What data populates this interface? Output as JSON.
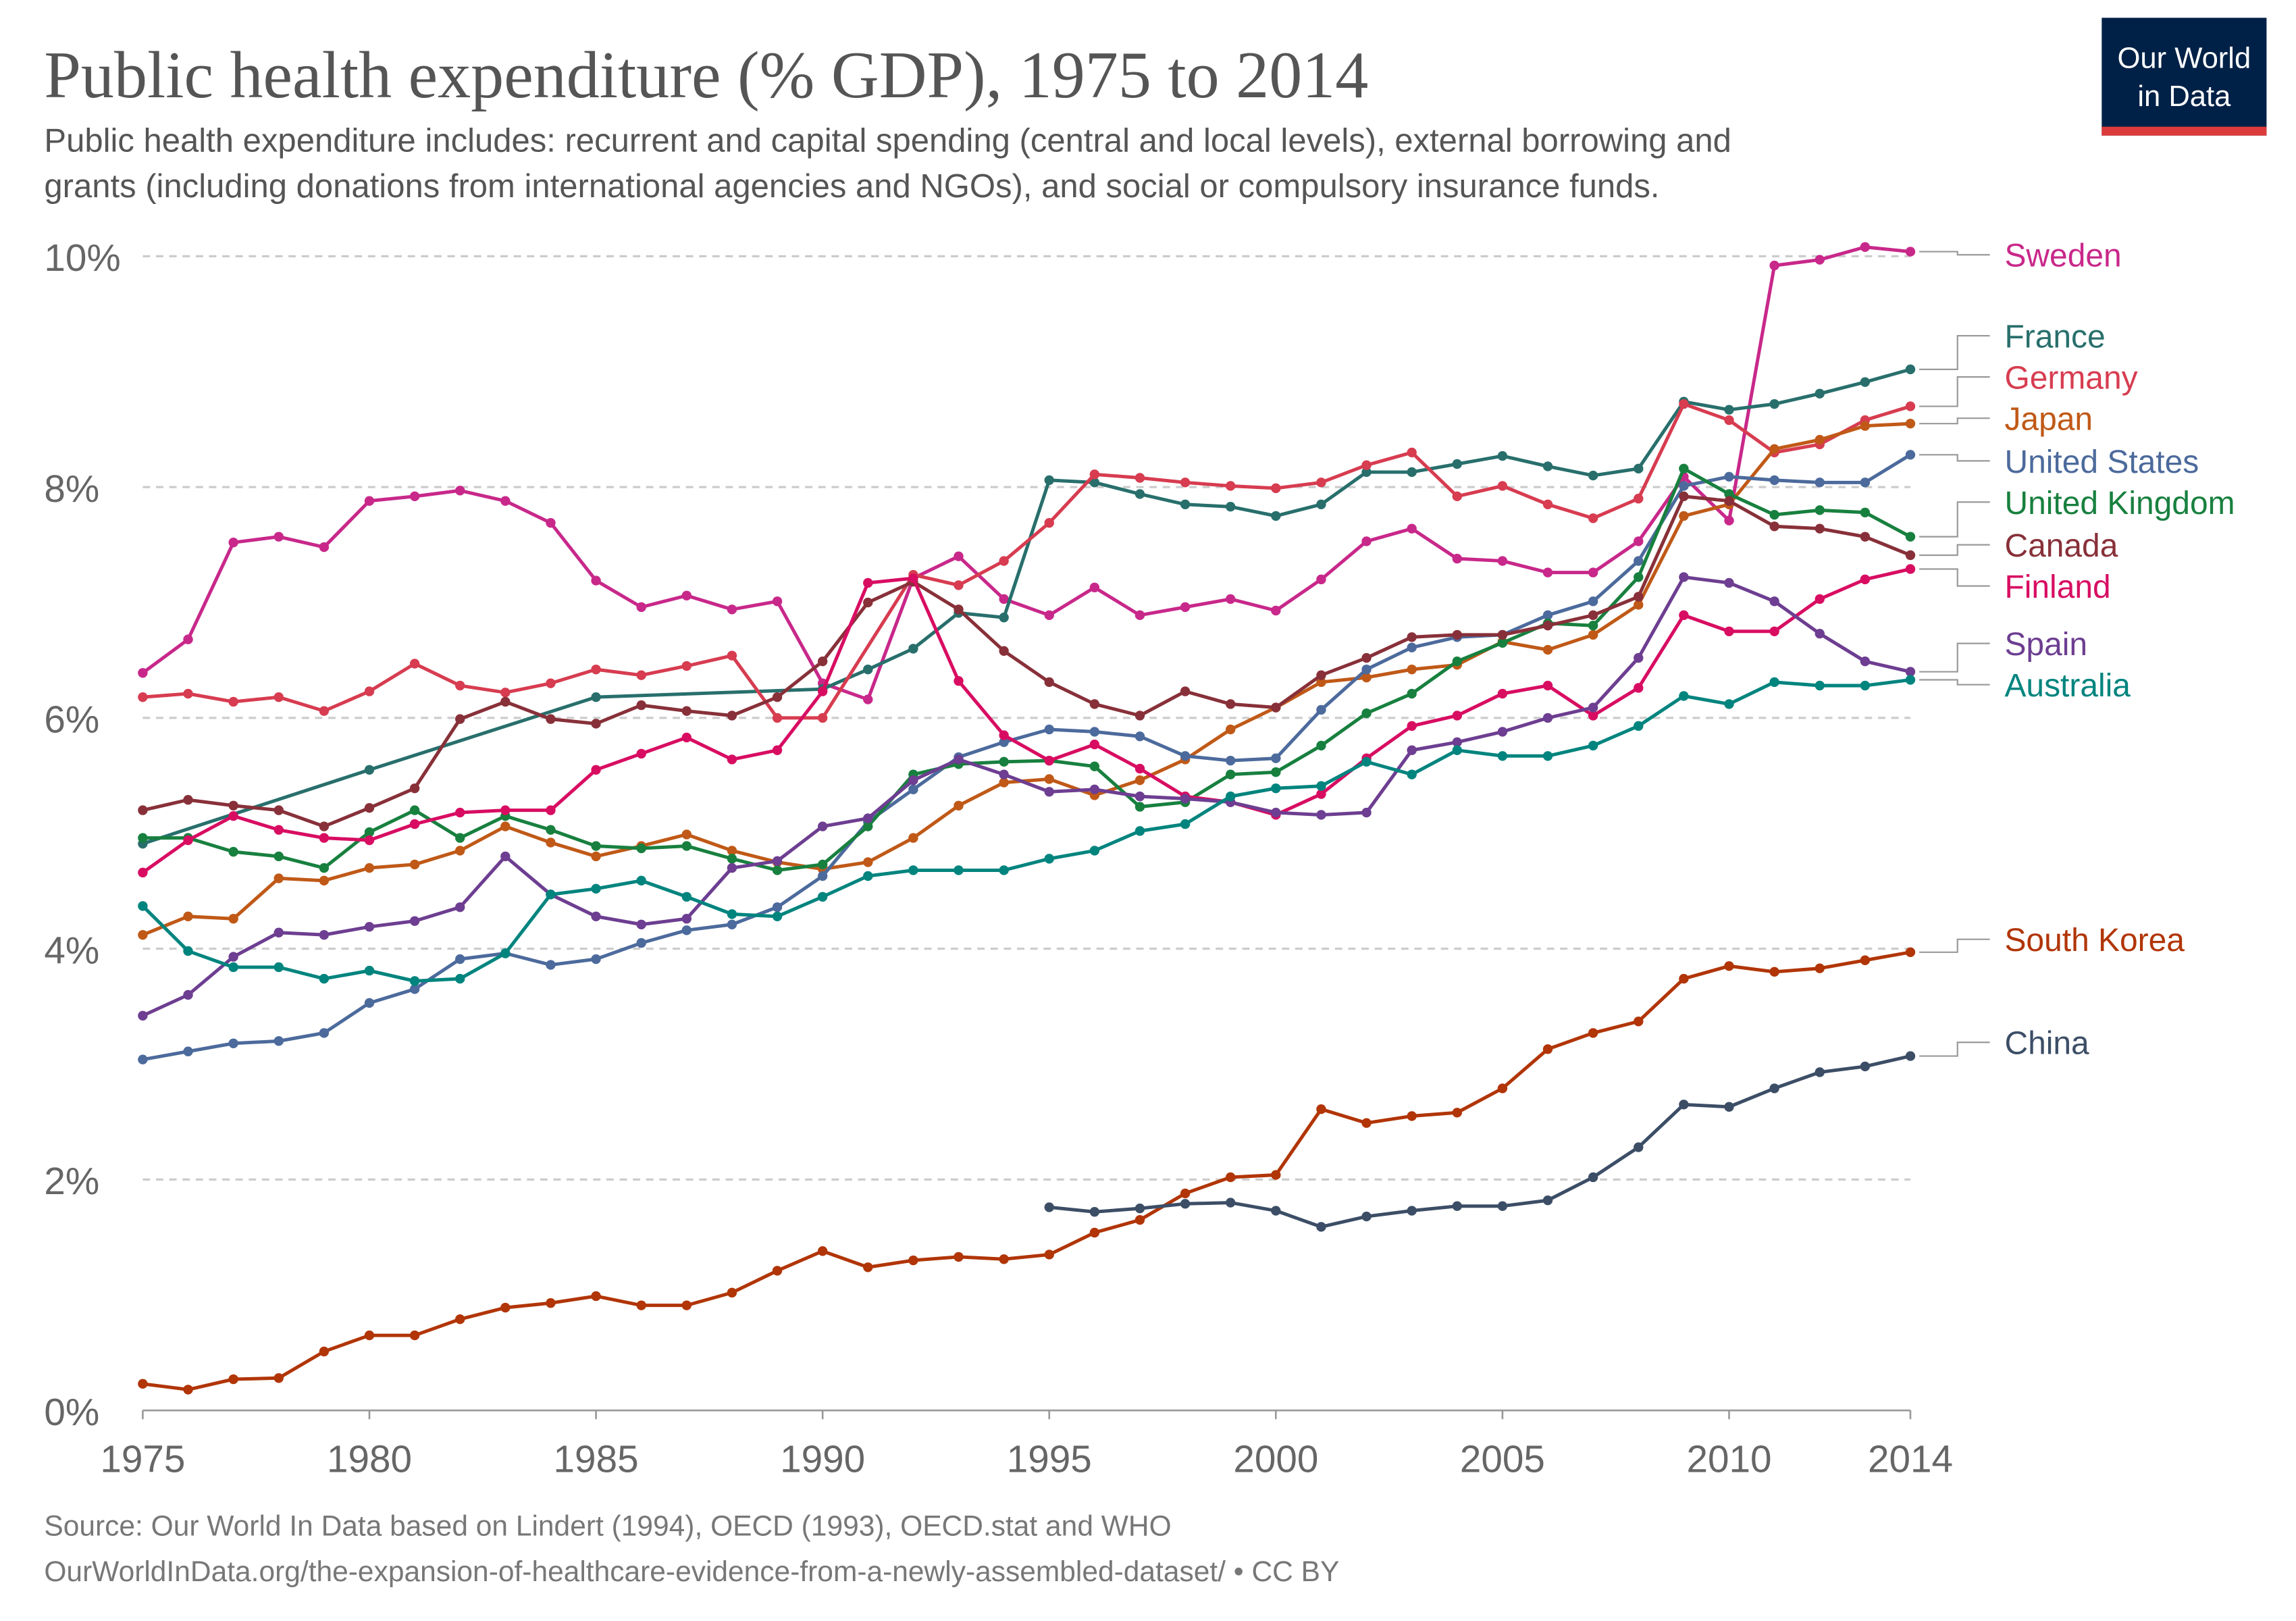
{
  "header": {
    "title": "Public health expenditure (% GDP), 1975 to 2014",
    "subtitle_line1": "Public health expenditure includes: recurrent and capital spending (central and local levels), external borrowing and",
    "subtitle_line2": "grants (including donations from international agencies and NGOs), and social or compulsory insurance funds."
  },
  "logo": {
    "line1": "Our World",
    "line2": "in Data",
    "bg_color": "#002147",
    "accent_color": "#dc3b3b"
  },
  "footer": {
    "source": "Source: Our World In Data based on Lindert (1994), OECD (1993), OECD.stat and WHO",
    "url": "OurWorldInData.org/the-expansion-of-healthcare-evidence-from-a-newly-assembled-dataset/ • CC BY"
  },
  "chart_data": {
    "type": "line",
    "title": "Public health expenditure (% GDP), 1975 to 2014",
    "xlabel": "",
    "ylabel": "",
    "xlim": [
      1975,
      2014
    ],
    "ylim": [
      0,
      10
    ],
    "grid": "horizontal dashed",
    "legend": "right (line-end labels)",
    "x_ticks": [
      "1975",
      "1980",
      "1985",
      "1990",
      "1995",
      "2000",
      "2005",
      "2010",
      "2014"
    ],
    "y_ticks": [
      "0%",
      "2%",
      "4%",
      "6%",
      "8%",
      "10%"
    ],
    "x": [
      1975,
      1976,
      1977,
      1978,
      1979,
      1980,
      1981,
      1982,
      1983,
      1984,
      1985,
      1986,
      1987,
      1988,
      1989,
      1990,
      1991,
      1992,
      1993,
      1994,
      1995,
      1996,
      1997,
      1998,
      1999,
      2000,
      2001,
      2002,
      2003,
      2004,
      2005,
      2006,
      2007,
      2008,
      2009,
      2010,
      2011,
      2012,
      2013,
      2014
    ],
    "series": [
      {
        "name": "Sweden",
        "color": "#c8288a",
        "values": [
          6.39,
          6.68,
          7.52,
          7.57,
          7.48,
          7.88,
          7.92,
          7.97,
          7.88,
          7.69,
          7.19,
          6.96,
          7.06,
          6.94,
          7.01,
          6.3,
          6.16,
          7.21,
          7.4,
          7.03,
          6.89,
          7.13,
          6.89,
          6.96,
          7.03,
          6.93,
          7.2,
          7.53,
          7.64,
          7.38,
          7.36,
          7.26,
          7.26,
          7.53,
          8.09,
          7.71,
          9.92,
          9.97,
          10.08,
          10.04
        ]
      },
      {
        "name": "France",
        "color": "#286f6c",
        "values": [
          4.91,
          null,
          null,
          null,
          null,
          5.55,
          null,
          null,
          null,
          null,
          6.18,
          null,
          null,
          null,
          null,
          6.25,
          6.42,
          6.6,
          6.91,
          6.87,
          8.06,
          8.04,
          7.94,
          7.85,
          7.83,
          7.75,
          7.85,
          8.13,
          8.13,
          8.2,
          8.27,
          8.18,
          8.1,
          8.16,
          8.74,
          8.67,
          8.72,
          8.81,
          8.91,
          9.02
        ]
      },
      {
        "name": "Germany",
        "color": "#d73c50",
        "values": [
          6.18,
          6.21,
          6.14,
          6.18,
          6.06,
          6.23,
          6.47,
          6.28,
          6.22,
          6.3,
          6.42,
          6.37,
          6.45,
          6.54,
          6.0,
          6.0,
          null,
          7.24,
          7.15,
          7.36,
          7.69,
          8.11,
          8.08,
          8.04,
          8.01,
          7.99,
          8.04,
          8.19,
          8.3,
          7.92,
          8.01,
          7.85,
          7.73,
          7.9,
          8.72,
          8.58,
          8.3,
          8.37,
          8.58,
          8.7
        ]
      },
      {
        "name": "Japan",
        "color": "#c05917",
        "values": [
          4.12,
          4.28,
          4.26,
          4.61,
          4.59,
          4.7,
          4.73,
          4.85,
          5.06,
          4.92,
          4.8,
          4.89,
          4.99,
          4.85,
          4.75,
          4.69,
          4.75,
          4.96,
          5.24,
          5.44,
          5.47,
          5.33,
          5.46,
          5.64,
          5.9,
          6.09,
          6.31,
          6.35,
          6.42,
          6.46,
          6.66,
          6.59,
          6.72,
          6.98,
          7.75,
          7.85,
          8.33,
          8.41,
          8.53,
          8.55
        ]
      },
      {
        "name": "United States",
        "color": "#4c6a9c",
        "values": [
          3.04,
          3.11,
          3.18,
          3.2,
          3.27,
          3.53,
          3.65,
          3.91,
          3.96,
          3.86,
          3.91,
          4.05,
          4.16,
          4.21,
          4.36,
          4.63,
          5.1,
          5.38,
          5.66,
          5.79,
          5.9,
          5.88,
          5.84,
          5.67,
          5.63,
          5.65,
          6.07,
          6.42,
          6.61,
          6.7,
          6.72,
          6.89,
          7.01,
          7.36,
          8.01,
          8.09,
          8.06,
          8.04,
          8.04,
          8.28
        ]
      },
      {
        "name": "United Kingdom",
        "color": "#18803f",
        "values": [
          4.96,
          4.96,
          4.84,
          4.8,
          4.7,
          5.01,
          5.2,
          4.96,
          5.15,
          5.03,
          4.89,
          4.87,
          4.89,
          4.78,
          4.68,
          4.73,
          5.06,
          5.51,
          5.6,
          5.62,
          5.63,
          5.58,
          5.23,
          5.27,
          5.51,
          5.53,
          5.76,
          6.04,
          6.21,
          6.49,
          6.65,
          6.82,
          6.8,
          7.22,
          8.16,
          7.94,
          7.76,
          7.8,
          7.78,
          7.57
        ]
      },
      {
        "name": "Canada",
        "color": "#883039",
        "values": [
          5.2,
          5.29,
          5.24,
          5.2,
          5.06,
          5.22,
          5.39,
          5.99,
          6.14,
          5.99,
          5.95,
          6.11,
          6.06,
          6.02,
          6.18,
          6.49,
          7.0,
          7.18,
          6.94,
          6.58,
          6.31,
          6.12,
          6.02,
          6.23,
          6.12,
          6.09,
          6.37,
          6.52,
          6.7,
          6.72,
          6.72,
          6.8,
          6.89,
          7.05,
          7.92,
          7.88,
          7.66,
          7.64,
          7.57,
          7.41
        ]
      },
      {
        "name": "Finland",
        "color": "#d80d62",
        "values": [
          4.66,
          4.94,
          5.15,
          5.03,
          4.96,
          4.94,
          5.08,
          5.18,
          5.2,
          5.2,
          5.55,
          5.69,
          5.83,
          5.64,
          5.72,
          6.23,
          7.17,
          7.21,
          6.32,
          5.85,
          5.63,
          5.77,
          5.56,
          5.32,
          5.27,
          5.16,
          5.34,
          5.65,
          5.93,
          6.02,
          6.21,
          6.28,
          6.02,
          6.26,
          6.89,
          6.75,
          6.75,
          7.03,
          7.2,
          7.29
        ]
      },
      {
        "name": "Spain",
        "color": "#6d3e91",
        "values": [
          3.42,
          3.6,
          3.93,
          4.14,
          4.12,
          4.19,
          4.24,
          4.36,
          4.8,
          4.47,
          4.28,
          4.21,
          4.26,
          4.7,
          4.76,
          5.06,
          5.13,
          5.46,
          5.64,
          5.51,
          5.36,
          5.38,
          5.32,
          5.3,
          5.27,
          5.18,
          5.16,
          5.18,
          5.72,
          5.79,
          5.88,
          6.0,
          6.09,
          6.52,
          7.22,
          7.17,
          7.01,
          6.73,
          6.49,
          6.4
        ]
      },
      {
        "name": "Australia",
        "color": "#00847e",
        "values": [
          4.37,
          3.98,
          3.84,
          3.84,
          3.74,
          3.81,
          3.72,
          3.74,
          3.96,
          4.47,
          4.52,
          4.59,
          4.45,
          4.3,
          4.28,
          4.45,
          4.63,
          4.68,
          4.68,
          4.68,
          4.78,
          4.85,
          5.02,
          5.08,
          5.32,
          5.39,
          5.41,
          5.62,
          5.51,
          5.72,
          5.67,
          5.67,
          5.76,
          5.93,
          6.19,
          6.12,
          6.31,
          6.28,
          6.28,
          6.33
        ]
      },
      {
        "name": "South Korea",
        "color": "#b13507",
        "values": [
          0.23,
          0.18,
          0.27,
          0.28,
          0.51,
          0.65,
          0.65,
          0.79,
          0.89,
          0.93,
          0.99,
          0.91,
          0.91,
          1.02,
          1.21,
          1.38,
          1.24,
          1.3,
          1.33,
          1.31,
          1.35,
          1.54,
          1.65,
          1.88,
          2.02,
          2.04,
          2.61,
          2.49,
          2.55,
          2.58,
          2.79,
          3.13,
          3.27,
          3.37,
          3.74,
          3.85,
          3.8,
          3.83,
          3.9,
          3.97
        ]
      },
      {
        "name": "China",
        "color": "#3c4e66",
        "values": [
          null,
          null,
          null,
          null,
          null,
          null,
          null,
          null,
          null,
          null,
          null,
          null,
          null,
          null,
          null,
          null,
          null,
          null,
          null,
          null,
          1.76,
          1.72,
          1.75,
          1.79,
          1.8,
          1.73,
          1.59,
          1.68,
          1.73,
          1.77,
          1.77,
          1.82,
          2.02,
          2.28,
          2.65,
          2.63,
          2.79,
          2.93,
          2.98,
          3.07
        ]
      }
    ]
  }
}
